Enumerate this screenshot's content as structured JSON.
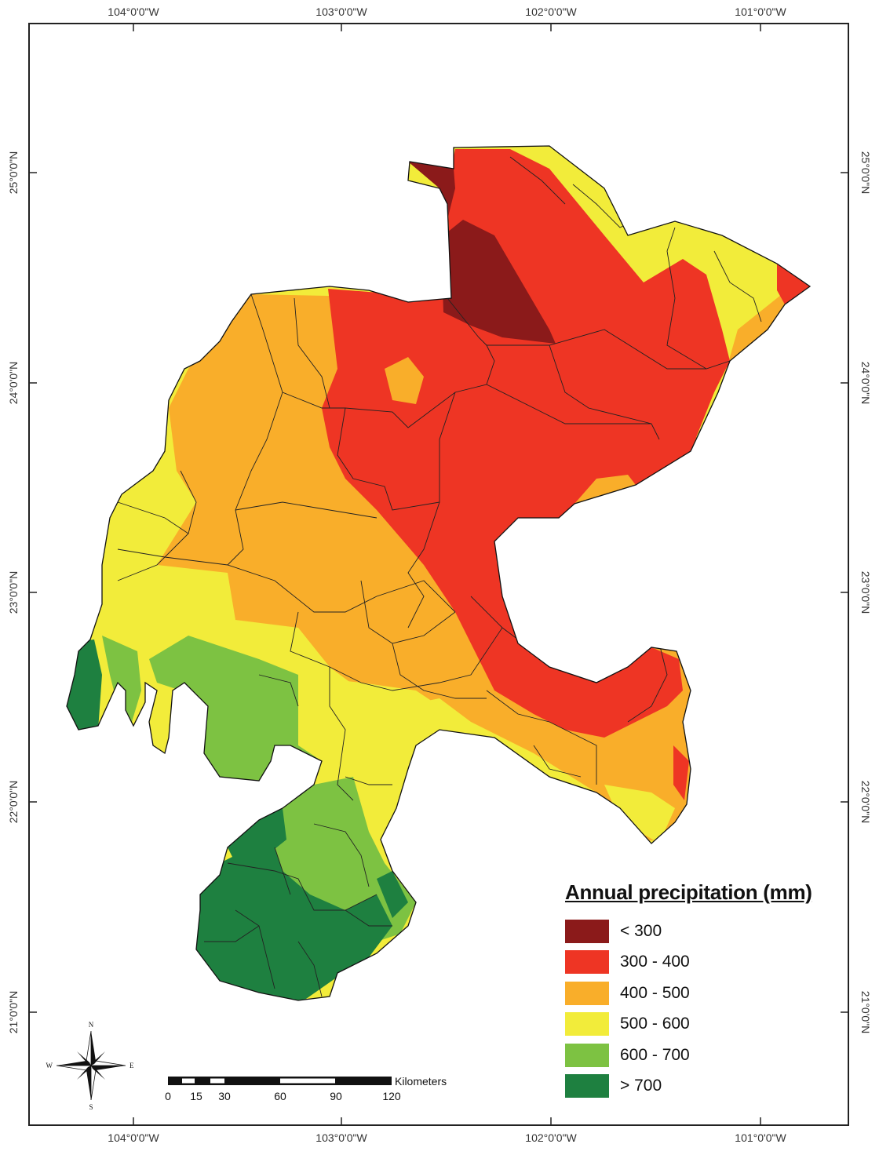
{
  "map": {
    "lon_labels": [
      "104°0'0\"W",
      "103°0'0\"W",
      "102°0'0\"W",
      "101°0'0\"W"
    ],
    "lat_labels": [
      "25°0'0\"N",
      "24°0'0\"N",
      "23°0'0\"N",
      "22°0'0\"N",
      "21°0'0\"N"
    ]
  },
  "legend": {
    "title": "Annual  precipitation (mm)",
    "items": [
      {
        "label": "< 300",
        "color": "#8b1a1a"
      },
      {
        "label": "300 - 400",
        "color": "#ee3524"
      },
      {
        "label": "400 - 500",
        "color": "#f9ae2a"
      },
      {
        "label": "500 - 600",
        "color": "#f2ec3a"
      },
      {
        "label": "600 - 700",
        "color": "#7dc242"
      },
      {
        "label": "> 700",
        "color": "#1e8040"
      }
    ]
  },
  "scale_bar": {
    "unit": "Kilometers",
    "ticks": [
      "0",
      "15",
      "30",
      "60",
      "90",
      "120"
    ]
  },
  "north_arrow": {
    "n": "N",
    "s": "S",
    "e": "E",
    "w": "W"
  }
}
